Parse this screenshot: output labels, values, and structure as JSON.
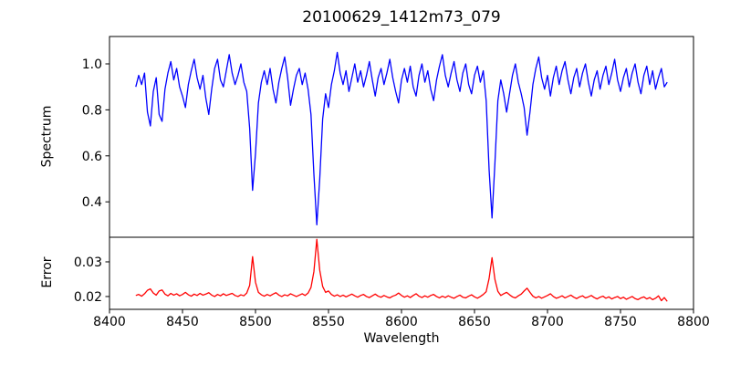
{
  "figure": {
    "background": "#ffffff",
    "frame_color": "#000000",
    "text_color": "#000000"
  },
  "chart_data": [
    {
      "type": "line",
      "title": "20100629_1412m73_079",
      "ylabel": "Spectrum",
      "series_name": "spectrum",
      "line_color": "#0000ff",
      "grid": false,
      "legend": "none",
      "xlim": [
        8400,
        8800
      ],
      "ylim": [
        0.246,
        1.119
      ],
      "ytick_values": [
        1.0,
        0.8,
        0.6,
        0.4
      ],
      "ytick_labels": [
        "1.0",
        "0.8",
        "0.6",
        "0.4"
      ],
      "x_start": 8418,
      "x_step": 2,
      "values": [
        0.9,
        0.95,
        0.91,
        0.96,
        0.79,
        0.73,
        0.88,
        0.94,
        0.78,
        0.75,
        0.89,
        0.96,
        1.01,
        0.93,
        0.98,
        0.9,
        0.86,
        0.81,
        0.91,
        0.97,
        1.02,
        0.94,
        0.89,
        0.95,
        0.85,
        0.78,
        0.89,
        0.98,
        1.02,
        0.93,
        0.9,
        0.97,
        1.04,
        0.96,
        0.91,
        0.95,
        1.0,
        0.92,
        0.88,
        0.72,
        0.45,
        0.61,
        0.83,
        0.92,
        0.97,
        0.91,
        0.98,
        0.89,
        0.83,
        0.92,
        0.98,
        1.03,
        0.94,
        0.82,
        0.89,
        0.95,
        0.98,
        0.91,
        0.96,
        0.89,
        0.78,
        0.52,
        0.3,
        0.5,
        0.76,
        0.87,
        0.81,
        0.91,
        0.97,
        1.05,
        0.96,
        0.91,
        0.97,
        0.88,
        0.94,
        1.0,
        0.92,
        0.97,
        0.9,
        0.95,
        1.01,
        0.93,
        0.86,
        0.94,
        0.98,
        0.91,
        0.96,
        1.02,
        0.94,
        0.88,
        0.83,
        0.93,
        0.98,
        0.92,
        0.99,
        0.9,
        0.86,
        0.95,
        1.0,
        0.92,
        0.97,
        0.89,
        0.84,
        0.93,
        0.99,
        1.04,
        0.95,
        0.9,
        0.96,
        1.01,
        0.93,
        0.88,
        0.96,
        1.0,
        0.91,
        0.87,
        0.95,
        0.99,
        0.92,
        0.97,
        0.84,
        0.54,
        0.33,
        0.57,
        0.84,
        0.93,
        0.87,
        0.79,
        0.87,
        0.95,
        1.0,
        0.92,
        0.87,
        0.81,
        0.69,
        0.79,
        0.91,
        0.98,
        1.03,
        0.94,
        0.89,
        0.95,
        0.86,
        0.94,
        0.99,
        0.91,
        0.97,
        1.01,
        0.93,
        0.87,
        0.94,
        0.98,
        0.9,
        0.96,
        1.0,
        0.92,
        0.86,
        0.93,
        0.97,
        0.89,
        0.95,
        0.99,
        0.91,
        0.96,
        1.02,
        0.93,
        0.88,
        0.94,
        0.98,
        0.9,
        0.96,
        1.0,
        0.92,
        0.87,
        0.95,
        0.99,
        0.91,
        0.97,
        0.89,
        0.94,
        0.98,
        0.9,
        0.92
      ]
    },
    {
      "type": "line",
      "ylabel": "Error",
      "xlabel": "Wavelength",
      "series_name": "error",
      "line_color": "#ff0000",
      "grid": false,
      "legend": "none",
      "xlim": [
        8400,
        8800
      ],
      "ylim": [
        0.0163,
        0.0371
      ],
      "ytick_values": [
        0.03,
        0.02
      ],
      "ytick_labels": [
        "0.03",
        "0.02"
      ],
      "xtick_values": [
        8400,
        8450,
        8500,
        8550,
        8600,
        8650,
        8700,
        8750,
        8800
      ],
      "xtick_labels": [
        "8400",
        "8450",
        "8500",
        "8550",
        "8600",
        "8650",
        "8700",
        "8750",
        "8800"
      ],
      "x_start": 8418,
      "x_step": 2,
      "values": [
        0.0203,
        0.0206,
        0.0201,
        0.0208,
        0.0218,
        0.0222,
        0.021,
        0.0204,
        0.0216,
        0.0219,
        0.0207,
        0.0202,
        0.0209,
        0.0204,
        0.0208,
        0.0202,
        0.0206,
        0.0212,
        0.0205,
        0.0201,
        0.0207,
        0.0203,
        0.0209,
        0.0204,
        0.0207,
        0.0211,
        0.0204,
        0.02,
        0.0206,
        0.0202,
        0.0208,
        0.0203,
        0.0206,
        0.0209,
        0.0203,
        0.02,
        0.0205,
        0.0202,
        0.021,
        0.0232,
        0.0315,
        0.0241,
        0.0212,
        0.0205,
        0.0201,
        0.0206,
        0.0202,
        0.0207,
        0.0211,
        0.0204,
        0.02,
        0.0205,
        0.0202,
        0.0208,
        0.0204,
        0.02,
        0.0204,
        0.0208,
        0.0203,
        0.021,
        0.0226,
        0.0272,
        0.0365,
        0.0276,
        0.0229,
        0.0212,
        0.0216,
        0.0206,
        0.0201,
        0.0205,
        0.02,
        0.0204,
        0.0199,
        0.0203,
        0.0207,
        0.0202,
        0.0198,
        0.0203,
        0.0206,
        0.02,
        0.0197,
        0.0202,
        0.0207,
        0.0201,
        0.0198,
        0.0203,
        0.0199,
        0.0196,
        0.0201,
        0.0204,
        0.021,
        0.0203,
        0.0198,
        0.0202,
        0.0197,
        0.0203,
        0.0208,
        0.0201,
        0.0197,
        0.0202,
        0.0198,
        0.0203,
        0.0206,
        0.02,
        0.0196,
        0.0201,
        0.0197,
        0.0202,
        0.0198,
        0.0195,
        0.02,
        0.0204,
        0.0198,
        0.0196,
        0.0201,
        0.0205,
        0.0199,
        0.0195,
        0.02,
        0.0206,
        0.0214,
        0.0252,
        0.0312,
        0.0249,
        0.0215,
        0.0203,
        0.0208,
        0.0212,
        0.0205,
        0.0199,
        0.0196,
        0.0202,
        0.0207,
        0.0216,
        0.0224,
        0.0212,
        0.0201,
        0.0196,
        0.02,
        0.0195,
        0.0199,
        0.0203,
        0.0208,
        0.02,
        0.0195,
        0.0198,
        0.0202,
        0.0196,
        0.02,
        0.0204,
        0.0198,
        0.0194,
        0.0199,
        0.0202,
        0.0196,
        0.0199,
        0.0203,
        0.0197,
        0.0193,
        0.0198,
        0.0201,
        0.0195,
        0.0199,
        0.0193,
        0.0197,
        0.02,
        0.0194,
        0.0198,
        0.0192,
        0.0196,
        0.02,
        0.0194,
        0.0191,
        0.0196,
        0.0199,
        0.0193,
        0.0197,
        0.0191,
        0.0195,
        0.0202,
        0.0188,
        0.0197,
        0.0186
      ]
    }
  ]
}
